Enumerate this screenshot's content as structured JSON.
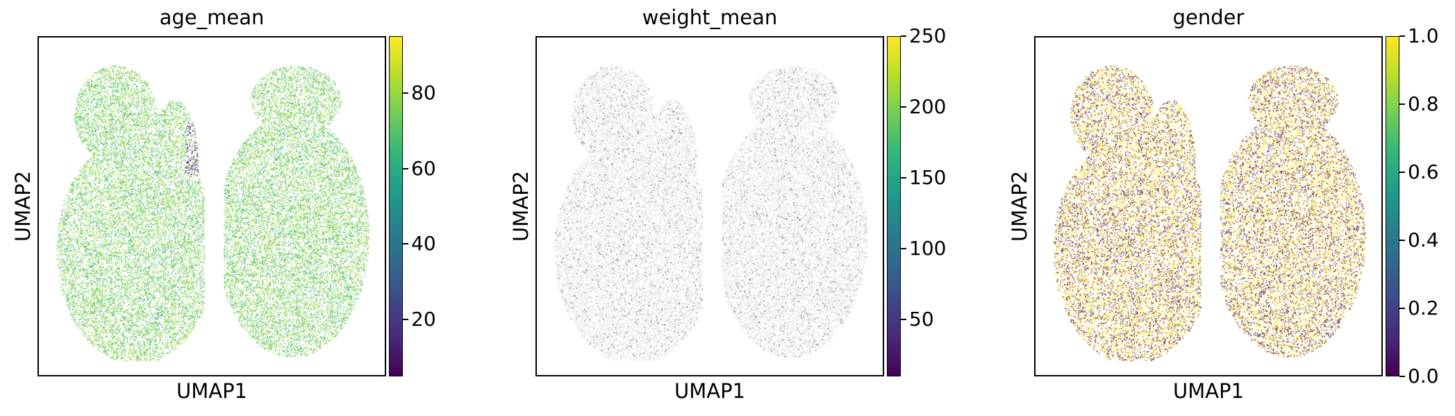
{
  "chart_data": [
    {
      "type": "scatter",
      "title": "age_mean",
      "xlabel": "UMAP1",
      "ylabel": "UMAP2",
      "colorbar": {
        "range": [
          5,
          95
        ],
        "ticks": [
          20,
          40,
          60,
          80
        ],
        "tick_labels": [
          "20",
          "40",
          "60",
          "80"
        ],
        "colormap": "viridis"
      },
      "dominant_value_range": [
        55,
        90
      ],
      "sparse_low_values": "small cluster near center with values ~5–20"
    },
    {
      "type": "scatter",
      "title": "weight_mean",
      "xlabel": "UMAP1",
      "ylabel": "UMAP2",
      "colorbar": {
        "range": [
          10,
          250
        ],
        "ticks": [
          50,
          100,
          150,
          200,
          250
        ],
        "tick_labels": [
          "50",
          "100",
          "150",
          "200",
          "250"
        ],
        "colormap": "viridis"
      },
      "missing_color": "#d3d3d3",
      "dominant": "mostly missing (gray) with sparse low-value points"
    },
    {
      "type": "scatter",
      "title": "gender",
      "xlabel": "UMAP1",
      "ylabel": "UMAP2",
      "colorbar": {
        "range": [
          0,
          1
        ],
        "ticks": [
          0.0,
          0.2,
          0.4,
          0.6,
          0.8,
          1.0
        ],
        "tick_labels": [
          "0.0",
          "0.2",
          "0.4",
          "0.6",
          "0.8",
          "1.0"
        ],
        "colormap": "viridis"
      },
      "values_present": [
        0.0,
        1.0
      ]
    }
  ]
}
